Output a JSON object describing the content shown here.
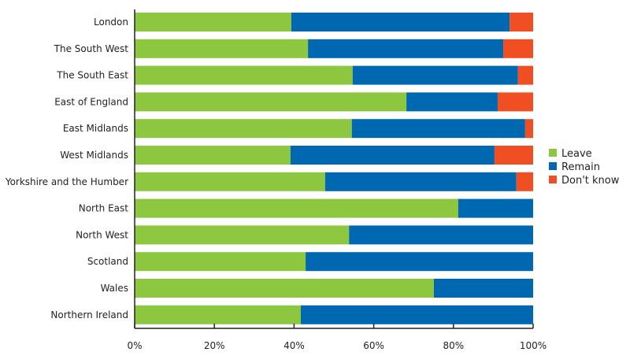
{
  "chart_data": {
    "type": "bar",
    "orientation": "horizontal",
    "stacked": true,
    "categories": [
      "London",
      "The South West",
      "The South East",
      "East of England",
      "East Midlands",
      "West Midlands",
      "Yorkshire and the Humber",
      "North East",
      "North West",
      "Scotland",
      "Wales",
      "Northern Ireland"
    ],
    "series": [
      {
        "name": "Leave",
        "color": "#8dc63f",
        "values": [
          39.3,
          43.5,
          54.7,
          68.2,
          54.5,
          39.1,
          47.8,
          81.2,
          53.8,
          42.9,
          75.1,
          41.7
        ]
      },
      {
        "name": "Remain",
        "color": "#0068b0",
        "values": [
          54.8,
          49.0,
          41.5,
          22.9,
          43.5,
          51.2,
          48.0,
          18.8,
          46.2,
          57.1,
          24.9,
          58.3
        ]
      },
      {
        "name": "Don't know",
        "color": "#f04e23",
        "values": [
          5.9,
          7.5,
          3.8,
          8.9,
          2.0,
          9.7,
          4.2,
          0,
          0,
          0,
          0,
          0
        ]
      }
    ],
    "xlim": [
      0,
      100
    ],
    "xticks": [
      "0%",
      "20%",
      "40%",
      "60%",
      "80%",
      "100%"
    ],
    "grid": false,
    "legend": "right"
  }
}
